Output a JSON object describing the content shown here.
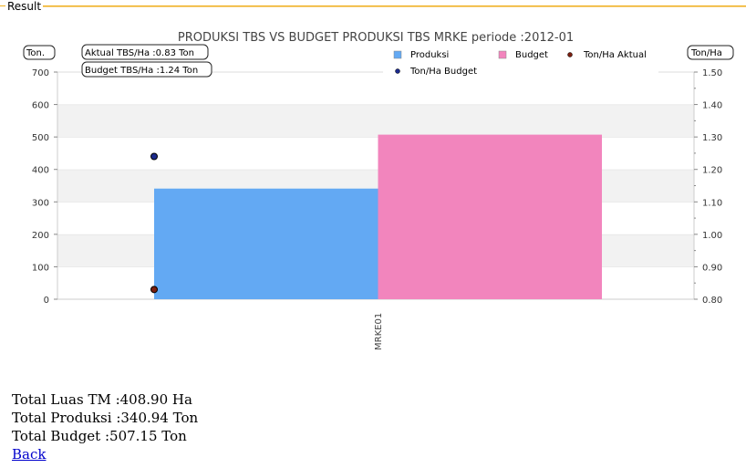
{
  "panel": {
    "label": "Result"
  },
  "chart_data": {
    "type": "bar",
    "title": "PRODUKSI TBS VS BUDGET PRODUKSI TBS MRKE periode :2012-01",
    "categories": [
      "MRKE01"
    ],
    "series": [
      {
        "name": "Produksi",
        "values": [
          340.94
        ],
        "color": "#63a9f3"
      },
      {
        "name": "Budget",
        "values": [
          507.15
        ],
        "color": "#f285bd"
      }
    ],
    "points": [
      {
        "name": "Ton/Ha Aktual",
        "value": 0.83,
        "color": "#7a1f10"
      },
      {
        "name": "Ton/Ha Budget",
        "value": 1.24,
        "color": "#1b2a8c"
      }
    ],
    "y_left": {
      "label": "Ton.",
      "lim": [
        0,
        700
      ],
      "ticks": [
        "0",
        "100",
        "200",
        "300",
        "400",
        "500",
        "600",
        "700"
      ]
    },
    "y_right": {
      "label": "Ton/Ha",
      "lim": [
        0.8,
        1.5
      ],
      "ticks": [
        "0.80",
        "0.90",
        "1.00",
        "1.10",
        "1.20",
        "1.30",
        "1.40",
        "1.50"
      ]
    },
    "annotations": [
      "Aktual TBS/Ha :0.83 Ton",
      "Budget TBS/Ha :1.24 Ton"
    ],
    "legend_position": "top-right",
    "grid": true
  },
  "summary": {
    "luas": "Total Luas TM :408.90 Ha",
    "produksi": "Total Produksi :340.94 Ton",
    "budget": "Total Budget :507.15 Ton",
    "back_label": "Back"
  }
}
